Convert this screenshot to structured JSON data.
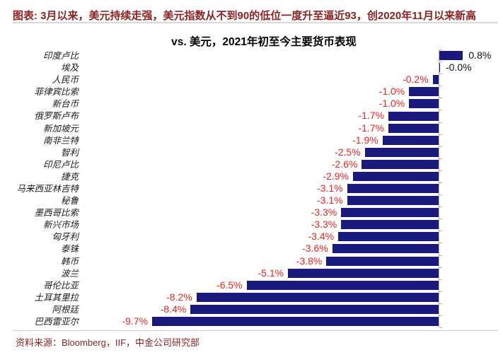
{
  "header": {
    "text": "图表: 3月以来，美元持续走强，美元指数从不到90的低位一度升至逼近93，创2020年11月以来新高"
  },
  "footer": {
    "text": "资料来源：Bloomberg，IIF，中金公司研究部"
  },
  "colors": {
    "header_text": "#8e2323",
    "source_text": "#8e2323",
    "bar": "#1a1a7e",
    "negative_label": "#ee2422",
    "positive_label": "#111111",
    "axis_line": "#b3b3b3",
    "divider": "#d9d9d9",
    "title_text": "#000000"
  },
  "chart_data": {
    "type": "bar",
    "orientation": "horizontal",
    "title": "vs. 美元，2021年初至今主要货币表现",
    "unit": "%",
    "xlim": [
      -10.5,
      1.5
    ],
    "grid": false,
    "legend": false,
    "zero_axis_line": true,
    "categories": [
      "印度卢比",
      "埃及",
      "人民币",
      "菲律宾比索",
      "新台币",
      "俄罗斯卢布",
      "新加坡元",
      "南非兰特",
      "智利",
      "印尼卢比",
      "捷克",
      "马来西亚林吉特",
      "秘鲁",
      "墨西哥比索",
      "新兴市场",
      "匈牙利",
      "泰铢",
      "韩币",
      "波兰",
      "哥伦比亚",
      "土耳其里拉",
      "阿根廷",
      "巴西雷亚尔"
    ],
    "values": [
      0.8,
      -0.0,
      -0.2,
      -1.0,
      -1.0,
      -1.7,
      -1.7,
      -1.9,
      -2.5,
      -2.6,
      -2.9,
      -3.1,
      -3.1,
      -3.3,
      -3.3,
      -3.4,
      -3.6,
      -3.8,
      -5.1,
      -6.5,
      -8.2,
      -8.4,
      -9.7
    ],
    "value_labels": [
      "0.8%",
      "-0.0%",
      "-0.2%",
      "-1.0%",
      "-1.0%",
      "-1.7%",
      "-1.7%",
      "-1.9%",
      "-2.5%",
      "-2.6%",
      "-2.9%",
      "-3.1%",
      "-3.1%",
      "-3.3%",
      "-3.3%",
      "-3.4%",
      "-3.6%",
      "-3.8%",
      "-5.1%",
      "-6.5%",
      "-8.2%",
      "-8.4%",
      "-9.7%"
    ]
  }
}
